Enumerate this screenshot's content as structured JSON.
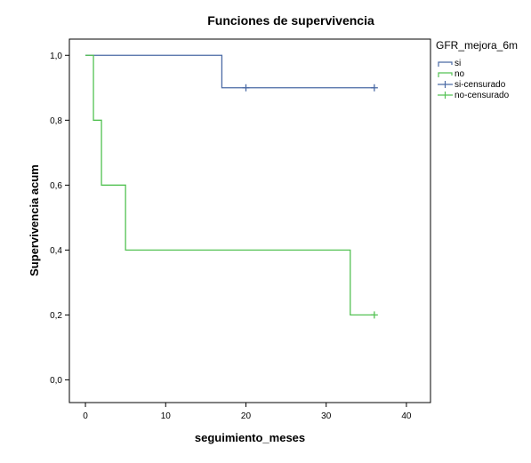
{
  "chart_data": {
    "type": "line",
    "step": true,
    "title": "Funciones de supervivencia",
    "xlabel": "seguimiento_meses",
    "ylabel": "Supervivencia acum",
    "xlim": [
      -2,
      43
    ],
    "ylim": [
      -0.07,
      1.05
    ],
    "xticks": [
      0,
      10,
      20,
      30,
      40
    ],
    "xtick_labels": [
      "0",
      "10",
      "20",
      "30",
      "40"
    ],
    "yticks": [
      0,
      0.2,
      0.4,
      0.6,
      0.8,
      1.0
    ],
    "ytick_labels": [
      "0,0",
      "0,2",
      "0,4",
      "0,6",
      "0,8",
      "1,0"
    ],
    "legend": {
      "title": "GFR_mejora_6m",
      "placement": "right",
      "entries": [
        {
          "label": "si",
          "kind": "step",
          "color": "#4a6aa5"
        },
        {
          "label": "no",
          "kind": "step",
          "color": "#54c254"
        },
        {
          "label": "si-censurado",
          "kind": "censor",
          "color": "#4a6aa5"
        },
        {
          "label": "no-censurado",
          "kind": "censor",
          "color": "#54c254"
        }
      ]
    },
    "series": [
      {
        "group": "si",
        "color": "#4a6aa5",
        "x": [
          0,
          17,
          36
        ],
        "y": [
          1.0,
          0.9,
          0.9
        ],
        "censored": [
          {
            "x": 20,
            "y": 0.9
          },
          {
            "x": 36,
            "y": 0.9
          }
        ]
      },
      {
        "group": "no",
        "color": "#54c254",
        "x": [
          0,
          1,
          2,
          5,
          33,
          36
        ],
        "y": [
          1.0,
          0.8,
          0.6,
          0.4,
          0.2,
          0.2
        ],
        "censored": [
          {
            "x": 36,
            "y": 0.2
          }
        ]
      }
    ]
  }
}
